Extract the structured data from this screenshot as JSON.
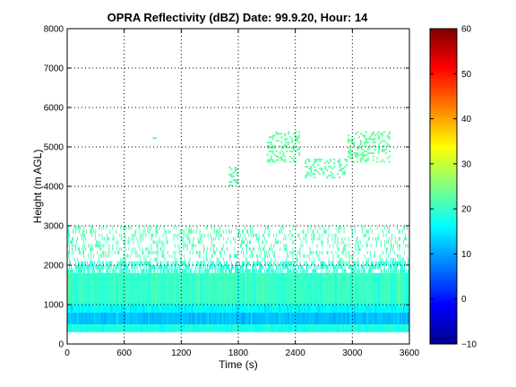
{
  "chart_data": {
    "type": "heatmap",
    "title": "OPRA Reflectivity (dBZ)  Date: 99.9.20, Hour: 14",
    "xlabel": "Time (s)",
    "ylabel": "Height (m AGL)",
    "xlim": [
      0,
      3600
    ],
    "ylim": [
      0,
      8000
    ],
    "x_ticks": [
      0,
      600,
      1200,
      1800,
      2400,
      3000,
      3600
    ],
    "y_ticks": [
      0,
      1000,
      2000,
      3000,
      4000,
      5000,
      6000,
      7000,
      8000
    ],
    "grid": "dotted",
    "colorbar": {
      "colormap": "jet",
      "range": [
        -10,
        60
      ],
      "ticks": [
        -10,
        0,
        10,
        20,
        30,
        40,
        50,
        60
      ],
      "position": "right"
    },
    "layers": [
      {
        "height_range": [
          300,
          500
        ],
        "dBZ": 18,
        "coverage": "continuous"
      },
      {
        "height_range": [
          500,
          800
        ],
        "dBZ": 12,
        "coverage": "continuous"
      },
      {
        "height_range": [
          800,
          1000
        ],
        "dBZ": 16,
        "coverage": "continuous"
      },
      {
        "height_range": [
          1000,
          1800
        ],
        "dBZ": 20,
        "coverage": "continuous"
      },
      {
        "height_range": [
          1800,
          2100
        ],
        "dBZ": 19,
        "coverage": "broken"
      },
      {
        "height_range": [
          2100,
          2800
        ],
        "dBZ": 21,
        "coverage": "sparse"
      },
      {
        "height_range": [
          2800,
          3000
        ],
        "dBZ": 22,
        "coverage": "sparse"
      }
    ],
    "echoes": [
      {
        "time_range": [
          1700,
          1800
        ],
        "height_range": [
          4000,
          4500
        ],
        "dBZ": 22
      },
      {
        "time_range": [
          2100,
          2450
        ],
        "height_range": [
          4600,
          5400
        ],
        "dBZ": 23
      },
      {
        "time_range": [
          2500,
          2950
        ],
        "height_range": [
          4200,
          4700
        ],
        "dBZ": 22
      },
      {
        "time_range": [
          2950,
          3400
        ],
        "height_range": [
          4600,
          5400
        ],
        "dBZ": 23
      },
      {
        "time_range": [
          900,
          940
        ],
        "height_range": [
          5150,
          5250
        ],
        "dBZ": 22
      }
    ]
  }
}
